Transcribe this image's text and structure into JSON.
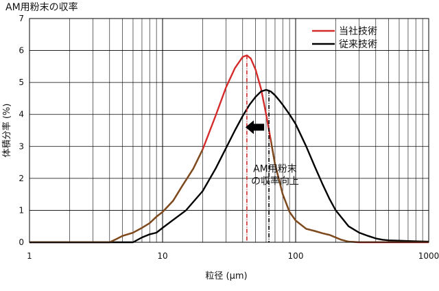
{
  "chart_data": {
    "type": "line",
    "title": "AM用粉末の収率",
    "xlabel": "粒径 (μm)",
    "ylabel": "体積分率 (%)",
    "x_scale": "log",
    "xlim": [
      1,
      1000
    ],
    "ylim": [
      0,
      7
    ],
    "x_ticks": [
      1,
      10,
      100,
      1000
    ],
    "x_tick_labels": [
      "1",
      "10",
      "100",
      "1000"
    ],
    "y_ticks": [
      0,
      1,
      2,
      3,
      4,
      5,
      6,
      7
    ],
    "grid": true,
    "legend_position": "top-right",
    "series": [
      {
        "name": "当社技術",
        "color": "#d42a2a",
        "x": [
          1,
          2,
          4,
          4.5,
          5,
          6,
          7,
          8,
          9,
          10,
          12,
          14,
          17,
          20,
          25,
          30,
          35,
          40,
          43,
          46,
          50,
          55,
          60,
          65,
          70,
          80,
          90,
          100,
          120,
          140,
          160,
          180,
          200,
          220,
          250,
          300,
          400,
          600,
          1000
        ],
        "y": [
          0,
          0,
          0,
          0.1,
          0.2,
          0.3,
          0.45,
          0.6,
          0.8,
          0.95,
          1.3,
          1.75,
          2.3,
          2.9,
          3.95,
          4.85,
          5.45,
          5.8,
          5.85,
          5.75,
          5.4,
          4.8,
          4.0,
          3.2,
          2.45,
          1.5,
          0.95,
          0.68,
          0.42,
          0.35,
          0.28,
          0.23,
          0.15,
          0.08,
          0.02,
          0,
          0,
          0,
          0
        ]
      },
      {
        "name": "従来技術",
        "color": "#000000",
        "x": [
          1,
          2,
          4,
          6,
          7,
          8,
          9,
          10,
          12,
          15,
          20,
          25,
          30,
          35,
          40,
          45,
          50,
          55,
          60,
          65,
          70,
          75,
          80,
          90,
          100,
          120,
          140,
          160,
          180,
          200,
          250,
          300,
          350,
          400,
          450,
          500,
          600,
          800,
          1000
        ],
        "y": [
          0,
          0,
          0,
          0,
          0.15,
          0.25,
          0.3,
          0.45,
          0.7,
          1.0,
          1.6,
          2.3,
          2.95,
          3.5,
          3.95,
          4.3,
          4.55,
          4.72,
          4.77,
          4.72,
          4.6,
          4.45,
          4.3,
          4.0,
          3.7,
          3.0,
          2.35,
          1.8,
          1.35,
          1.0,
          0.5,
          0.3,
          0.2,
          0.12,
          0.08,
          0.06,
          0.05,
          0.03,
          0.02
        ]
      }
    ],
    "vlines": [
      {
        "x": 43,
        "style": "dashdot",
        "color": "#d42a2a"
      },
      {
        "x": 63,
        "style": "dashdot",
        "color": "#000000"
      }
    ],
    "annotation": {
      "lines": [
        "AM用粉末",
        "の収率向上"
      ],
      "x": 70,
      "y": 2.2,
      "arrow_from_x": 58,
      "arrow_to_x": 42,
      "arrow_y": 3.6
    },
    "overlap_color": "#7a4c1e"
  }
}
